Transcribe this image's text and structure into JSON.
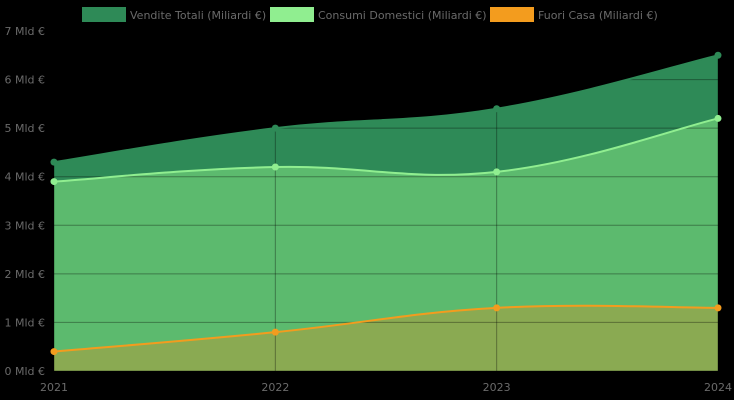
{
  "chart_data": {
    "type": "area",
    "title": "",
    "xlabel": "",
    "ylabel": "",
    "categories": [
      "2021",
      "2022",
      "2023",
      "2024"
    ],
    "ylim": [
      0,
      7
    ],
    "ytick_labels": [
      "0 Mld €",
      "1 Mld €",
      "2 Mld €",
      "3 Mld €",
      "4 Mld €",
      "5 Mld €",
      "6 Mld €",
      "7 Mld €"
    ],
    "grid": true,
    "legend_position": "top-center",
    "series": [
      {
        "name": "Vendite Totali (Miliardi €)",
        "values": [
          4.3,
          5.0,
          5.4,
          6.5
        ],
        "color": "#2e8a57",
        "line": "#2e8a57"
      },
      {
        "name": "Consumi Domestici (Miliardi €)",
        "values": [
          3.9,
          4.2,
          4.1,
          5.2
        ],
        "color": "#5cba6e",
        "line": "#90ee90",
        "legend_color": "#90ee90"
      },
      {
        "name": "Fuori Casa (Miliardi €)",
        "values": [
          0.4,
          0.8,
          1.3,
          1.3
        ],
        "color": "#8aaa52",
        "line": "#f39c1e",
        "legend_color": "#f39c1e"
      }
    ]
  }
}
